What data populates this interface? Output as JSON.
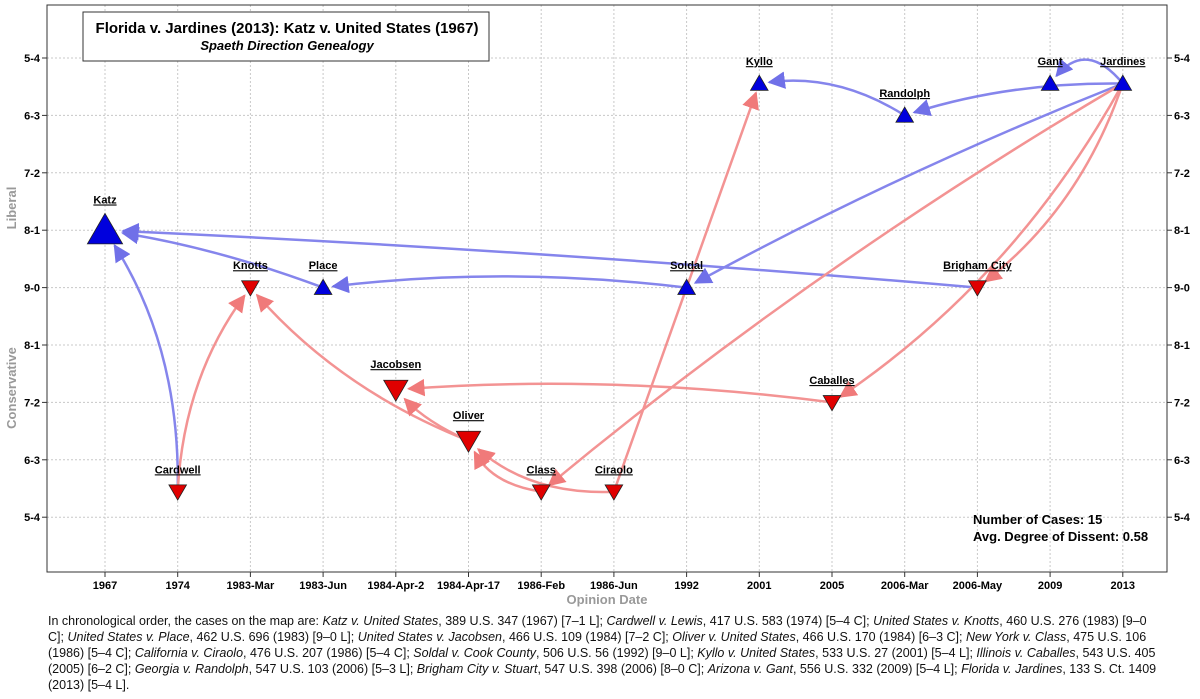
{
  "chart_data": {
    "type": "genealogy",
    "title": "Florida v. Jardines (2013): Katz v. United States (1967)",
    "subtitle": "Spaeth Direction Genealogy",
    "xlabel": "Opinion Date",
    "ylabel_top": "Liberal",
    "ylabel_bottom": "Conservative",
    "x_categories": [
      "1967",
      "1974",
      "1983-Mar",
      "1983-Jun",
      "1984-Apr-2",
      "1984-Apr-17",
      "1986-Feb",
      "1986-Jun",
      "1992",
      "2001",
      "2005",
      "2006-Mar",
      "2006-May",
      "2009",
      "2013"
    ],
    "y_tick_labels": [
      "5-4",
      "6-3",
      "7-2",
      "8-1",
      "9-0",
      "8-1",
      "7-2",
      "6-3",
      "5-4"
    ],
    "grid": true,
    "colors": {
      "liberal": "#0000dd",
      "conservative": "#e00000",
      "liberal_edge": "#8080ee",
      "conservative_edge": "#f28b8b"
    },
    "cases": [
      {
        "id": "katz",
        "label": "Katz",
        "x": "1967",
        "vote": "7-1",
        "direction": "liberal",
        "size": "large"
      },
      {
        "id": "cardwell",
        "label": "Cardwell",
        "x": "1974",
        "vote": "5-4",
        "direction": "conservative",
        "size": "small"
      },
      {
        "id": "knotts",
        "label": "Knotts",
        "x": "1983-Mar",
        "vote": "9-0",
        "direction": "conservative",
        "size": "small"
      },
      {
        "id": "place",
        "label": "Place",
        "x": "1983-Jun",
        "vote": "9-0",
        "direction": "liberal",
        "size": "small"
      },
      {
        "id": "jacobsen",
        "label": "Jacobsen",
        "x": "1984-Apr-2",
        "vote": "7-2",
        "direction": "conservative",
        "size": "medium"
      },
      {
        "id": "oliver",
        "label": "Oliver",
        "x": "1984-Apr-17",
        "vote": "6-3",
        "direction": "conservative",
        "size": "medium"
      },
      {
        "id": "class",
        "label": "Class",
        "x": "1986-Feb",
        "vote": "5-4",
        "direction": "conservative",
        "size": "small"
      },
      {
        "id": "ciraolo",
        "label": "Ciraolo",
        "x": "1986-Jun",
        "vote": "5-4",
        "direction": "conservative",
        "size": "small"
      },
      {
        "id": "soldal",
        "label": "Soldal",
        "x": "1992",
        "vote": "9-0",
        "direction": "liberal",
        "size": "small"
      },
      {
        "id": "kyllo",
        "label": "Kyllo",
        "x": "2001",
        "vote": "5-4",
        "direction": "liberal",
        "size": "small"
      },
      {
        "id": "caballes",
        "label": "Caballes",
        "x": "2005",
        "vote": "6-2",
        "direction": "conservative",
        "size": "small"
      },
      {
        "id": "randolph",
        "label": "Randolph",
        "x": "2006-Mar",
        "vote": "5-3",
        "direction": "liberal",
        "size": "small"
      },
      {
        "id": "brigham",
        "label": "Brigham City",
        "x": "2006-May",
        "vote": "8-0",
        "direction": "conservative",
        "size": "small"
      },
      {
        "id": "gant",
        "label": "Gant",
        "x": "2009",
        "vote": "5-4",
        "direction": "liberal",
        "size": "small"
      },
      {
        "id": "jardines",
        "label": "Jardines",
        "x": "2013",
        "vote": "5-4",
        "direction": "liberal",
        "size": "small"
      }
    ],
    "edges": [
      {
        "from": "cardwell",
        "to": "katz",
        "direction": "liberal",
        "bend": 0.15
      },
      {
        "from": "cardwell",
        "to": "knotts",
        "direction": "conservative",
        "bend": -0.15
      },
      {
        "from": "place",
        "to": "katz",
        "direction": "liberal",
        "bend": 0.05
      },
      {
        "from": "oliver",
        "to": "knotts",
        "direction": "conservative",
        "bend": -0.12
      },
      {
        "from": "oliver",
        "to": "jacobsen",
        "direction": "conservative",
        "bend": -0.1
      },
      {
        "from": "class",
        "to": "oliver",
        "direction": "conservative",
        "bend": -0.25
      },
      {
        "from": "ciraolo",
        "to": "oliver",
        "direction": "conservative",
        "bend": -0.2
      },
      {
        "from": "ciraolo",
        "to": "kyllo",
        "direction": "conservative",
        "bend": 0
      },
      {
        "from": "soldal",
        "to": "place",
        "direction": "liberal",
        "bend": 0.06
      },
      {
        "from": "caballes",
        "to": "jacobsen",
        "direction": "conservative",
        "bend": 0.05
      },
      {
        "from": "randolph",
        "to": "kyllo",
        "direction": "liberal",
        "bend": 0.18
      },
      {
        "from": "brigham",
        "to": "katz",
        "direction": "liberal",
        "bend": 0.01
      },
      {
        "from": "jardines",
        "to": "soldal",
        "direction": "liberal",
        "bend": 0.03
      },
      {
        "from": "jardines",
        "to": "randolph",
        "direction": "liberal",
        "bend": 0.08
      },
      {
        "from": "jardines",
        "to": "gant",
        "direction": "liberal",
        "bend": 0.6
      },
      {
        "from": "jardines",
        "to": "class",
        "direction": "conservative",
        "bend": 0.04
      },
      {
        "from": "jardines",
        "to": "caballes",
        "direction": "conservative",
        "bend": -0.12
      },
      {
        "from": "jardines",
        "to": "brigham",
        "direction": "conservative",
        "bend": -0.15
      }
    ],
    "stats": {
      "cases_label": "Number of Cases: 15",
      "dissent_label": "Avg. Degree of Dissent: 0.58"
    }
  },
  "caption_intro": "In chronological order, the cases on the map are:",
  "caption_entries": [
    {
      "name": "Katz v. United States",
      "cite": ", 389 U.S. 347 (1967) [7–1 L];"
    },
    {
      "name": "Cardwell v. Lewis",
      "cite": ", 417 U.S. 583 (1974) [5–4 C];"
    },
    {
      "name": "United States v. Knotts",
      "cite": ", 460 U.S. 276 (1983) [9–0 C];"
    },
    {
      "name": "United States v. Place",
      "cite": ", 462 U.S. 696 (1983) [9–0 L];"
    },
    {
      "name": "United States v. Jacobsen",
      "cite": ", 466 U.S. 109 (1984) [7–2 C];"
    },
    {
      "name": "Oliver v. United States",
      "cite": ", 466 U.S. 170 (1984) [6–3 C];"
    },
    {
      "name": "New York v. Class",
      "cite": ", 475 U.S. 106 (1986) [5–4 C];"
    },
    {
      "name": "California v. Ciraolo",
      "cite": ", 476 U.S. 207 (1986) [5–4 C];"
    },
    {
      "name": "Soldal v. Cook County",
      "cite": ", 506 U.S. 56 (1992) [9–0 L];"
    },
    {
      "name": "Kyllo v. United States",
      "cite": ", 533 U.S. 27 (2001) [5–4 L];"
    },
    {
      "name": "Illinois v. Caballes",
      "cite": ", 543 U.S. 405 (2005) [6–2 C];"
    },
    {
      "name": "Georgia v. Randolph",
      "cite": ", 547 U.S. 103 (2006) [5–3 L];"
    },
    {
      "name": "Brigham City v. Stuart",
      "cite": ", 547 U.S. 398 (2006) [8–0 C];"
    },
    {
      "name": "Arizona v. Gant",
      "cite": ", 556 U.S. 332 (2009) [5–4 L];"
    },
    {
      "name": "Florida v. Jardines",
      "cite": ", 133 S. Ct. 1409 (2013) [5–4 L]."
    }
  ]
}
